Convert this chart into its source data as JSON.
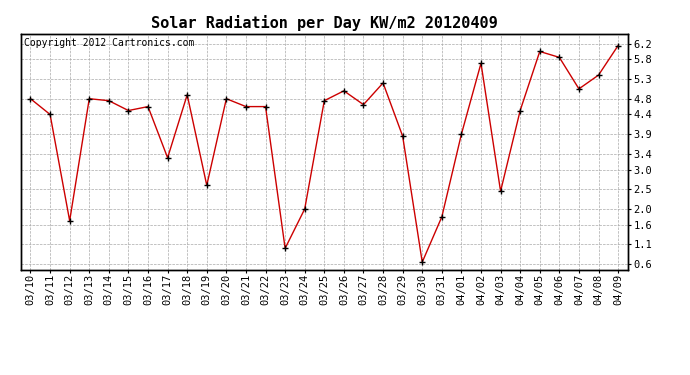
{
  "title": "Solar Radiation per Day KW/m2 20120409",
  "copyright_text": "Copyright 2012 Cartronics.com",
  "dates": [
    "03/10",
    "03/11",
    "03/12",
    "03/13",
    "03/14",
    "03/15",
    "03/16",
    "03/17",
    "03/18",
    "03/19",
    "03/20",
    "03/21",
    "03/22",
    "03/23",
    "03/24",
    "03/25",
    "03/26",
    "03/27",
    "03/28",
    "03/29",
    "03/30",
    "03/31",
    "04/01",
    "04/02",
    "04/03",
    "04/04",
    "04/05",
    "04/06",
    "04/07",
    "04/08",
    "04/09"
  ],
  "values": [
    4.8,
    4.4,
    1.7,
    4.8,
    4.75,
    4.5,
    4.6,
    3.3,
    4.9,
    2.6,
    4.8,
    4.6,
    4.6,
    1.0,
    2.0,
    4.75,
    5.0,
    4.65,
    5.2,
    3.85,
    0.65,
    1.8,
    3.9,
    5.7,
    2.45,
    4.5,
    6.0,
    5.85,
    5.05,
    5.4,
    6.15
  ],
  "line_color": "#cc0000",
  "marker_color": "#000000",
  "bg_color": "#ffffff",
  "grid_color": "#aaaaaa",
  "yticks": [
    0.6,
    1.1,
    1.6,
    2.0,
    2.5,
    3.0,
    3.4,
    3.9,
    4.4,
    4.8,
    5.3,
    5.8,
    6.2
  ],
  "ylim": [
    0.45,
    6.45
  ],
  "title_fontsize": 11,
  "copyright_fontsize": 7,
  "tick_fontsize": 7.5
}
